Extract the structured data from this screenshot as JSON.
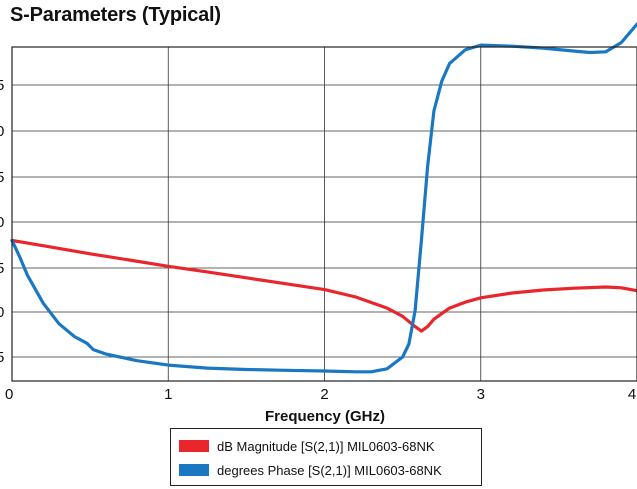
{
  "chart_data": {
    "type": "line",
    "title": "S-Parameters (Typical)",
    "xlabel": "Frequency (GHz)",
    "ylabel": "",
    "xlim": [
      0,
      4
    ],
    "x_ticks": [
      "0",
      "1",
      "2",
      "3",
      "4"
    ],
    "y_tick_labels_visible": [
      "5",
      "0",
      "5",
      "0",
      "5",
      "0",
      "5"
    ],
    "grid": true,
    "legend_position": "bottom",
    "series": [
      {
        "name": "dB Magnitude [S(2,1)] MIL0603-68NK",
        "color": "#e8262b",
        "x": [
          0,
          0.25,
          0.5,
          0.75,
          1.0,
          1.25,
          1.5,
          1.75,
          2.0,
          2.2,
          2.4,
          2.5,
          2.58,
          2.62,
          2.66,
          2.7,
          2.8,
          2.9,
          3.0,
          3.2,
          3.4,
          3.6,
          3.8,
          3.9,
          4.0
        ],
        "y": [
          1.0,
          0.82,
          0.64,
          0.47,
          0.3,
          0.15,
          -0.01,
          -0.17,
          -0.33,
          -0.53,
          -0.83,
          -1.05,
          -1.33,
          -1.45,
          -1.33,
          -1.13,
          -0.83,
          -0.67,
          -0.55,
          -0.42,
          -0.34,
          -0.29,
          -0.26,
          -0.28,
          -0.36
        ]
      },
      {
        "name": "degrees Phase [S(2,1)] MIL0603-68NK",
        "color": "#1a78c2",
        "x": [
          0,
          0.05,
          0.1,
          0.2,
          0.3,
          0.4,
          0.48,
          0.52,
          0.6,
          0.8,
          1.0,
          1.25,
          1.5,
          1.75,
          2.0,
          2.2,
          2.3,
          2.4,
          2.5,
          2.54,
          2.58,
          2.62,
          2.66,
          2.7,
          2.75,
          2.8,
          2.9,
          3.0,
          3.2,
          3.4,
          3.6,
          3.7,
          3.8,
          3.9,
          4.0
        ],
        "y": [
          1.0,
          0.55,
          0.05,
          -0.7,
          -1.25,
          -1.6,
          -1.78,
          -1.95,
          -2.07,
          -2.25,
          -2.37,
          -2.45,
          -2.49,
          -2.51,
          -2.53,
          -2.55,
          -2.55,
          -2.47,
          -2.15,
          -1.8,
          -0.9,
          1.0,
          3.0,
          4.5,
          5.3,
          5.78,
          6.15,
          6.28,
          6.25,
          6.2,
          6.12,
          6.08,
          6.1,
          6.35,
          6.85
        ]
      }
    ]
  }
}
